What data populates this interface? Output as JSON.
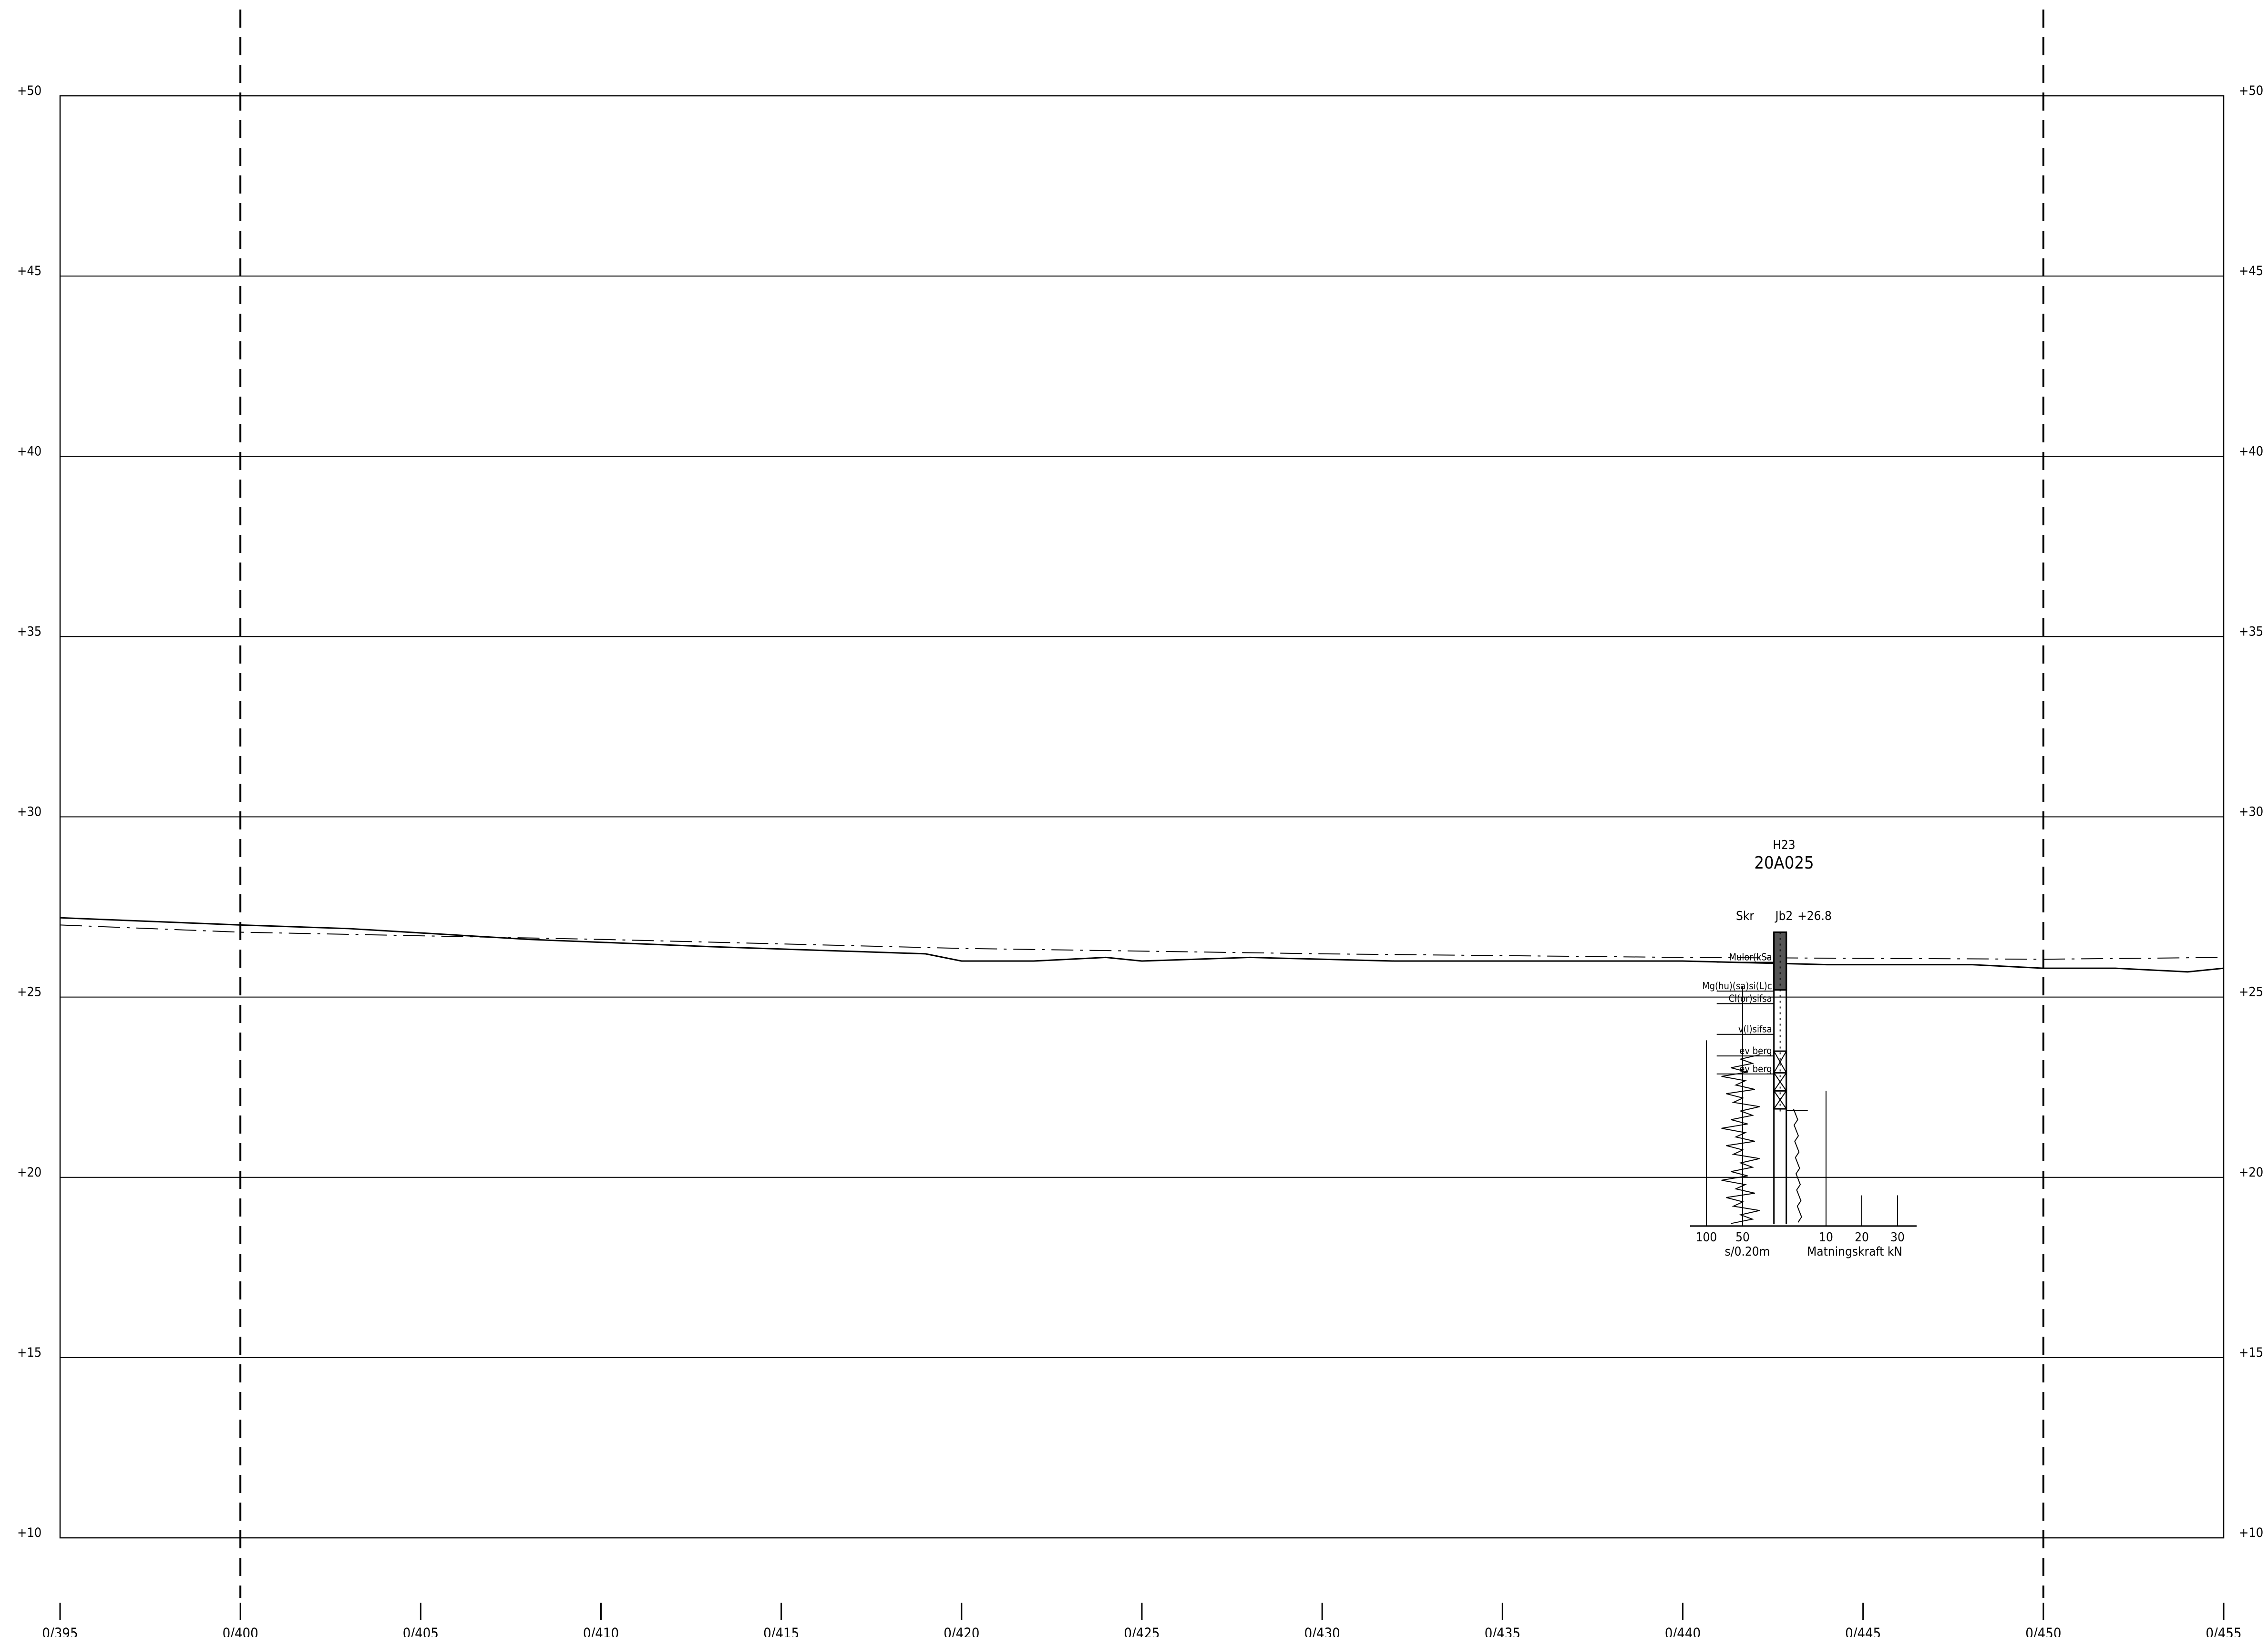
{
  "profile": {
    "elevation_labels": [
      "+50",
      "+45",
      "+40",
      "+35",
      "+30",
      "+25",
      "+20",
      "+15",
      "+10"
    ],
    "station_labels": [
      "0/395",
      "0/400",
      "0/405",
      "0/410",
      "0/415",
      "0/420",
      "0/425",
      "0/430",
      "0/435",
      "0/440",
      "0/445",
      "0/450",
      "0/455"
    ],
    "stations": [
      395,
      400,
      405,
      410,
      415,
      420,
      425,
      430,
      435,
      440,
      445,
      450,
      455
    ],
    "elevations": [
      50,
      45,
      40,
      35,
      30,
      25,
      20,
      15,
      10
    ],
    "dashed_stations": [
      400,
      450
    ],
    "ground_surface": [
      [
        395,
        27.2
      ],
      [
        400,
        27.0
      ],
      [
        403,
        26.9
      ],
      [
        408,
        26.6
      ],
      [
        413,
        26.4
      ],
      [
        419,
        26.2
      ],
      [
        420,
        26.0
      ],
      [
        422,
        26.0
      ],
      [
        424,
        26.1
      ],
      [
        425,
        26.0
      ],
      [
        428,
        26.1
      ],
      [
        432,
        26.0
      ],
      [
        435,
        26.0
      ],
      [
        440,
        26.0
      ],
      [
        444,
        25.9
      ],
      [
        448,
        25.9
      ],
      [
        450,
        25.8
      ],
      [
        452,
        25.8
      ],
      [
        454,
        25.7
      ],
      [
        455,
        25.8
      ]
    ],
    "reference_line": [
      [
        395,
        27.0
      ],
      [
        400,
        26.8
      ],
      [
        410,
        26.6
      ],
      [
        420,
        26.35
      ],
      [
        430,
        26.2
      ],
      [
        440,
        26.1
      ],
      [
        450,
        26.05
      ],
      [
        455,
        26.1
      ]
    ]
  },
  "borehole": {
    "group": "H23",
    "id": "20A025",
    "method_left": "Skr",
    "method_right": "Jb2",
    "top_level": "+26.8",
    "station": 442.7,
    "soil_layers": [
      "Mulor(kSa",
      "Mg(hu)(sa)si(L)c",
      "Cl(or)sifsa",
      "v(l)sifsa",
      "ev berg",
      "ev berg"
    ],
    "scale_left_ticks": [
      "100",
      "50"
    ],
    "scale_left_unit": "s/0.20m",
    "scale_right_ticks": [
      "10",
      "20",
      "30"
    ],
    "scale_right_unit": "Matningskraft  kN"
  }
}
